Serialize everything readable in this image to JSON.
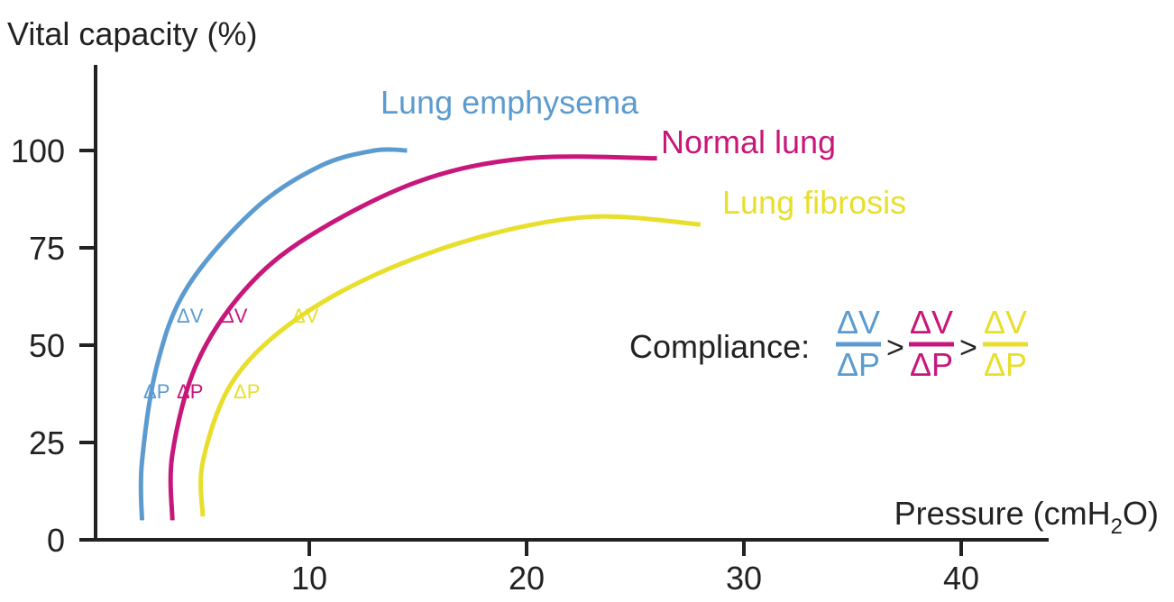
{
  "chart_data": {
    "type": "line",
    "title": "",
    "ylabel": "Vital capacity (%)",
    "xlabel_main": "Pressure (cmH",
    "xlabel_sub": "2",
    "xlabel_end": "O)",
    "xlim": [
      0,
      45
    ],
    "ylim": [
      0,
      120
    ],
    "x_ticks": [
      10,
      20,
      30,
      40
    ],
    "y_ticks": [
      0,
      25,
      50,
      75,
      100
    ],
    "y_tick_labels": [
      "0",
      "25",
      "50",
      "75",
      "100"
    ],
    "x_tick_labels": [
      "10",
      "20",
      "30",
      "40"
    ],
    "grid": false,
    "series": [
      {
        "name": "Lung emphysema",
        "color": "#5b9bd0",
        "points": [
          [
            2.3,
            5
          ],
          [
            2.3,
            20
          ],
          [
            3.0,
            45
          ],
          [
            4.4,
            65
          ],
          [
            7.5,
            85
          ],
          [
            10.5,
            96
          ],
          [
            13.0,
            100
          ],
          [
            14.5,
            100
          ]
        ]
      },
      {
        "name": "Normal lung",
        "color": "#c8177a",
        "points": [
          [
            3.7,
            5
          ],
          [
            3.7,
            22
          ],
          [
            4.8,
            45
          ],
          [
            7.0,
            64
          ],
          [
            10.0,
            78
          ],
          [
            15.0,
            92
          ],
          [
            20.0,
            98
          ],
          [
            26.0,
            98
          ]
        ]
      },
      {
        "name": "Lung fibrosis",
        "color": "#e8de2c",
        "points": [
          [
            5.1,
            6
          ],
          [
            5.1,
            20
          ],
          [
            6.4,
            40
          ],
          [
            9.0,
            55
          ],
          [
            13.0,
            68
          ],
          [
            18.0,
            78
          ],
          [
            23.0,
            83
          ],
          [
            28.0,
            81
          ]
        ]
      }
    ],
    "delta_labels": {
      "dv": "ΔV",
      "dp": "ΔP"
    },
    "compliance": {
      "label": "Compliance:",
      "numerator": "ΔV",
      "denominator": "ΔP",
      "operator": ">"
    }
  }
}
